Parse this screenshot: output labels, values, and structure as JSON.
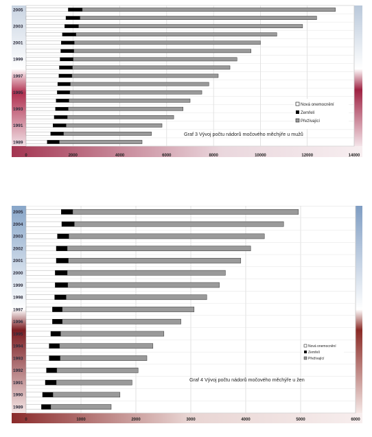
{
  "chart_data": [
    {
      "type": "bar",
      "stacked": true,
      "orientation": "horizontal",
      "title": "Graf 3  Vývoj počtu nádorů močového měchýře u mužů",
      "xlim": [
        0,
        14000
      ],
      "xticks": [
        "0",
        "2000",
        "4000",
        "6000",
        "8000",
        "10000",
        "12000",
        "14000"
      ],
      "tick_labels": [
        "1989",
        "1991",
        "1993",
        "1995",
        "1997",
        "1999",
        "2001",
        "2003",
        "2005"
      ],
      "categories": [
        "1989",
        "1990",
        "1991",
        "1992",
        "1993",
        "1994",
        "1995",
        "1996",
        "1997",
        "1998",
        "1999",
        "2000",
        "2001",
        "2002",
        "2003",
        "2004",
        "2005"
      ],
      "series": [
        {
          "name": "Nová onemocnění",
          "color": "#ffffff",
          "values": [
            900,
            1050,
            1150,
            1200,
            1250,
            1280,
            1330,
            1350,
            1400,
            1420,
            1450,
            1480,
            1500,
            1550,
            1650,
            1700,
            1800
          ]
        },
        {
          "name": "Zemřelí",
          "color": "#000000",
          "values": [
            520,
            550,
            560,
            560,
            550,
            550,
            540,
            540,
            560,
            560,
            560,
            560,
            560,
            580,
            590,
            600,
            600
          ]
        },
        {
          "name": "Přežívající",
          "color": "#9a9a9a",
          "values": [
            3530,
            3750,
            4090,
            4540,
            4900,
            5170,
            5630,
            5910,
            6240,
            6720,
            6990,
            7560,
            7940,
            8570,
            9560,
            10100,
            10800
          ]
        }
      ],
      "legend_position": "right-middle",
      "grid": true
    },
    {
      "type": "bar",
      "stacked": true,
      "orientation": "horizontal",
      "title": "Graf 4  Vývoj počtu nádorů močového měchýře u žen",
      "xlim": [
        0,
        6000
      ],
      "xticks": [
        "0",
        "1000",
        "2000",
        "3000",
        "4000",
        "5000",
        "6000"
      ],
      "tick_labels": [
        "1989",
        "1990",
        "1991",
        "1992",
        "1993",
        "1994",
        "1995",
        "1996",
        "1997",
        "1998",
        "1999",
        "2000",
        "2001",
        "2002",
        "2003",
        "2004",
        "2005"
      ],
      "categories": [
        "1989",
        "1990",
        "1991",
        "1992",
        "1993",
        "1994",
        "1995",
        "1996",
        "1997",
        "1998",
        "1999",
        "2000",
        "2001",
        "2002",
        "2003",
        "2004",
        "2005"
      ],
      "series": [
        {
          "name": "Nová onemocnění",
          "color": "#ffffff",
          "values": [
            280,
            300,
            350,
            370,
            420,
            420,
            450,
            480,
            480,
            520,
            530,
            530,
            550,
            550,
            570,
            650,
            640
          ]
        },
        {
          "name": "Zemřelí",
          "color": "#000000",
          "values": [
            170,
            190,
            200,
            190,
            200,
            190,
            180,
            180,
            180,
            210,
            230,
            220,
            220,
            200,
            210,
            230,
            210
          ]
        },
        {
          "name": "Přežívající",
          "color": "#9a9a9a",
          "values": [
            1100,
            1220,
            1380,
            1480,
            1580,
            1700,
            1880,
            2160,
            2400,
            2560,
            2760,
            2880,
            3140,
            3340,
            3560,
            3810,
            4110
          ]
        }
      ],
      "legend_position": "right-middle",
      "grid": true
    }
  ]
}
